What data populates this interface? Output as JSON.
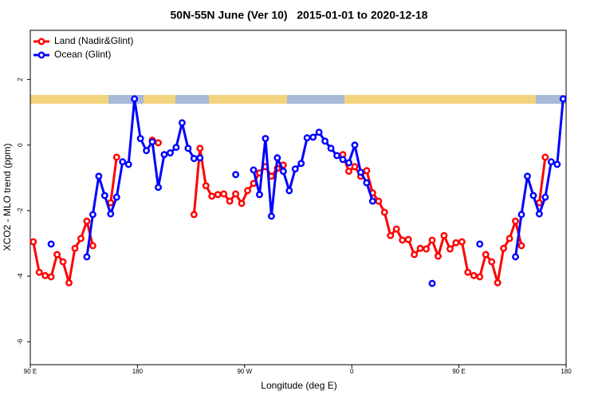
{
  "chart_data": {
    "type": "line",
    "title": "50N-55N June (Ver 10)   2015-01-01 to 2020-12-18",
    "xlabel": "Longitude (deg E)",
    "ylabel": "XCO2 - MLO trend (ppm)",
    "x": [
      92.5,
      97.5,
      102.5,
      107.5,
      112.5,
      117.5,
      122.5,
      127.5,
      132.5,
      137.5,
      142.5,
      147.5,
      152.5,
      157.5,
      162.5,
      167.5,
      172.5,
      177.5,
      182.5,
      187.5,
      192.5,
      197.5,
      202.5,
      207.5,
      212.5,
      217.5,
      222.5,
      227.5,
      232.5,
      237.5,
      242.5,
      247.5,
      252.5,
      257.5,
      262.5,
      267.5,
      272.5,
      277.5,
      282.5,
      287.5,
      292.5,
      297.5,
      302.5,
      307.5,
      312.5,
      317.5,
      322.5,
      327.5,
      332.5,
      337.5,
      342.5,
      347.5,
      352.5,
      357.5,
      362.5,
      367.5,
      372.5,
      377.5,
      382.5,
      387.5,
      392.5,
      397.5,
      402.5,
      407.5,
      412.5,
      417.5,
      422.5,
      427.5,
      432.5,
      437.5,
      442.5,
      447.5,
      452.5,
      457.5,
      462.5,
      467.5,
      472.5,
      477.5,
      482.5,
      487.5,
      492.5,
      497.5,
      502.5,
      507.5,
      512.5,
      517.5,
      522.5,
      527.5,
      532.5,
      537.5
    ],
    "series": [
      {
        "name": "Land (Nadir&Glint)",
        "color": "#ff0000",
        "values": [
          -2.95,
          -3.88,
          -3.98,
          -4.02,
          -3.34,
          -3.56,
          -4.2,
          -3.15,
          -2.85,
          -2.32,
          -3.07,
          null,
          null,
          -1.76,
          -0.37,
          null,
          null,
          null,
          null,
          null,
          0.15,
          0.07,
          null,
          null,
          null,
          null,
          null,
          -2.12,
          -0.1,
          -1.24,
          -1.56,
          -1.51,
          -1.49,
          -1.71,
          -1.49,
          -1.78,
          -1.39,
          -1.17,
          -0.85,
          -0.66,
          -0.95,
          -0.71,
          -0.61,
          null,
          null,
          null,
          null,
          null,
          null,
          null,
          null,
          null,
          -0.29,
          -0.8,
          -0.66,
          -0.95,
          -0.78,
          -1.46,
          -1.71,
          -2.05,
          -2.76,
          -2.56,
          -2.9,
          -2.88,
          -3.34,
          -3.15,
          -3.17,
          -2.9,
          -3.39,
          -2.76,
          -3.17,
          -2.98,
          -2.95,
          -3.88,
          -3.98,
          -4.02,
          -3.34,
          -3.56,
          -4.2,
          -3.15,
          -2.85,
          -2.32,
          -3.07,
          null,
          null,
          -1.76,
          -0.37,
          null,
          null,
          null
        ]
      },
      {
        "name": "Ocean (Glint)",
        "color": "#0000ff",
        "values": [
          null,
          null,
          null,
          -3.02,
          null,
          null,
          null,
          null,
          null,
          -3.41,
          -2.12,
          -0.95,
          -1.54,
          -2.1,
          -1.59,
          -0.51,
          -0.59,
          1.41,
          0.2,
          -0.17,
          0.1,
          -1.29,
          -0.29,
          -0.24,
          -0.07,
          0.68,
          -0.1,
          -0.41,
          -0.39,
          null,
          null,
          null,
          null,
          null,
          -0.9,
          null,
          null,
          -0.76,
          -1.51,
          0.2,
          -2.17,
          -0.39,
          -0.8,
          -1.39,
          -0.73,
          -0.56,
          0.22,
          0.24,
          0.39,
          0.12,
          -0.1,
          -0.32,
          -0.44,
          -0.54,
          0.0,
          -0.83,
          -1.15,
          -1.71,
          null,
          null,
          null,
          null,
          null,
          null,
          null,
          null,
          null,
          -4.22,
          null,
          null,
          null,
          null,
          null,
          null,
          null,
          -3.02,
          null,
          null,
          null,
          null,
          null,
          -3.41,
          -2.12,
          -0.95,
          -1.54,
          -2.1,
          -1.59,
          -0.51,
          -0.59,
          1.41
        ]
      }
    ],
    "xlim": [
      90,
      540
    ],
    "xticks": [
      {
        "value": 90,
        "label": "90 E"
      },
      {
        "value": 180,
        "label": "180"
      },
      {
        "value": 270,
        "label": "90 W"
      },
      {
        "value": 360,
        "label": "0"
      },
      {
        "value": 450,
        "label": "90 E"
      },
      {
        "value": 540,
        "label": "180"
      }
    ],
    "ylim": [
      -6.7,
      3.5
    ],
    "yticks": [
      -6,
      -4,
      -2,
      0,
      2
    ],
    "grid": false,
    "legend": "top-left"
  }
}
